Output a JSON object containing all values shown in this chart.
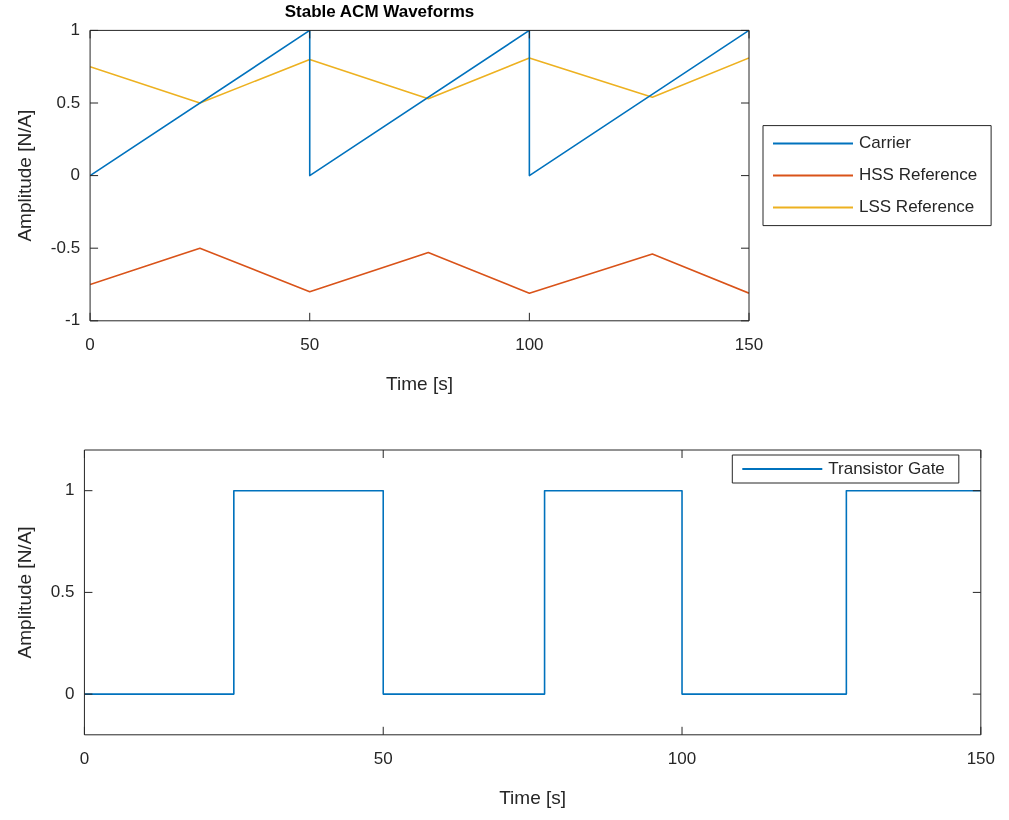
{
  "chart_data": [
    {
      "type": "line",
      "title": "Stable ACM Waveforms",
      "xlabel": "Time [s]",
      "ylabel": "Amplitude [N/A]",
      "xlim": [
        0,
        150
      ],
      "xticks": [
        0,
        50,
        100,
        150
      ],
      "ylim": [
        -1,
        1
      ],
      "yticks": [
        -1,
        -0.5,
        0,
        0.5,
        1
      ],
      "grid": false,
      "legend": "right",
      "series": [
        {
          "name": "Carrier",
          "color": "#0072bd",
          "x": [
            0,
            50,
            50,
            100,
            100,
            150
          ],
          "values": [
            0,
            1,
            0,
            1,
            0,
            1
          ]
        },
        {
          "name": "HSS Reference",
          "color": "#d95319",
          "x": [
            0,
            25,
            50,
            77,
            100,
            128,
            150
          ],
          "values": [
            -0.75,
            -0.5,
            -0.8,
            -0.53,
            -0.81,
            -0.54,
            -0.81
          ]
        },
        {
          "name": "LSS Reference",
          "color": "#edb120",
          "x": [
            0,
            25,
            50,
            77,
            100,
            128,
            150
          ],
          "values": [
            0.75,
            0.5,
            0.8,
            0.53,
            0.81,
            0.54,
            0.81
          ]
        }
      ]
    },
    {
      "type": "step",
      "xlabel": "Time [s]",
      "ylabel": "Amplitude [N/A]",
      "xlim": [
        0,
        150
      ],
      "xticks": [
        0,
        50,
        100,
        150
      ],
      "ylim": [
        -0.2,
        1.2
      ],
      "yticks": [
        0,
        0.5,
        1
      ],
      "grid": false,
      "legend": "top right",
      "series": [
        {
          "name": "Transistor Gate",
          "color": "#0072bd",
          "x": [
            0,
            25,
            50,
            77,
            100,
            127.5,
            150
          ],
          "values": [
            0,
            1,
            0,
            1,
            0,
            1,
            1
          ]
        }
      ]
    }
  ]
}
